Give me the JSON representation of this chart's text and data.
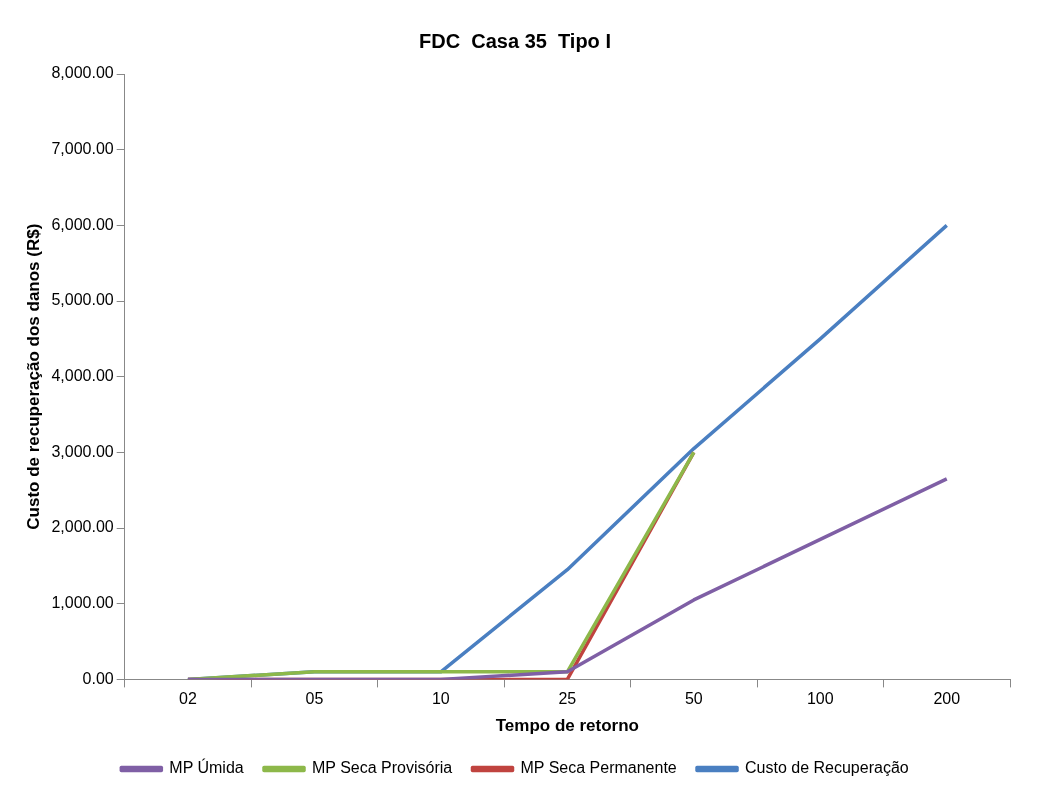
{
  "chart_data": {
    "type": "line",
    "title": "FDC  Casa 35  Tipo I",
    "xlabel": "Tempo de retorno",
    "ylabel": "Custo de recuperação dos danos (R$)",
    "categories": [
      "02",
      "05",
      "10",
      "25",
      "50",
      "100",
      "200"
    ],
    "series": [
      {
        "name": "MP Úmida",
        "color": "#7f5fa5",
        "values": [
          0,
          0,
          0,
          100,
          1050,
          1850,
          2650
        ]
      },
      {
        "name": "MP Seca Provisória",
        "color": "#8db84a",
        "values": [
          0,
          100,
          100,
          100,
          3000,
          null,
          null
        ]
      },
      {
        "name": "MP Seca Permanente",
        "color": "#c0433f",
        "values": [
          0,
          0,
          0,
          0,
          3000,
          null,
          null
        ]
      },
      {
        "name": "Custo de Recuperação",
        "color": "#4a7fc1",
        "values": [
          0,
          100,
          100,
          1450,
          3050,
          4500,
          6000
        ]
      }
    ],
    "ylim": [
      0,
      8000
    ],
    "yticks": [
      {
        "value": 0,
        "label": "0.00"
      },
      {
        "value": 1000,
        "label": "1,000.00"
      },
      {
        "value": 2000,
        "label": "2,000.00"
      },
      {
        "value": 3000,
        "label": "3,000.00"
      },
      {
        "value": 4000,
        "label": "4,000.00"
      },
      {
        "value": 5000,
        "label": "5,000.00"
      },
      {
        "value": 6000,
        "label": "6,000.00"
      },
      {
        "value": 7000,
        "label": "7,000.00"
      },
      {
        "value": 8000,
        "label": "8,000.00"
      }
    ],
    "grid": false,
    "legend": "bottom",
    "marker": "none",
    "line_style": "solid"
  }
}
